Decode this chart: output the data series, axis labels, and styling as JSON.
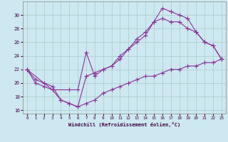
{
  "xlabel": "Windchill (Refroidissement éolien,°C)",
  "bg_color": "#cde8f0",
  "grid_color": "#aacccc",
  "line_color": "#883399",
  "xlim": [
    -0.5,
    23.5
  ],
  "ylim": [
    15.5,
    32
  ],
  "xticks": [
    0,
    1,
    2,
    3,
    4,
    5,
    6,
    7,
    8,
    9,
    10,
    11,
    12,
    13,
    14,
    15,
    16,
    17,
    18,
    19,
    20,
    21,
    22,
    23
  ],
  "yticks": [
    16,
    18,
    20,
    22,
    24,
    26,
    28,
    30
  ],
  "line1_x": [
    0,
    1,
    2,
    3,
    4,
    5,
    6,
    7,
    8,
    9,
    10,
    11,
    12,
    13,
    14,
    15,
    16,
    17,
    18,
    19,
    20,
    21,
    22,
    23
  ],
  "line1_y": [
    22,
    20,
    19.5,
    19,
    17.5,
    17,
    16.5,
    17,
    17.5,
    18.5,
    19,
    19.5,
    20,
    20.5,
    21,
    21,
    21.5,
    22,
    22,
    22.5,
    22.5,
    23,
    23,
    23.5
  ],
  "line2_x": [
    0,
    1,
    2,
    3,
    4,
    5,
    6,
    7,
    8,
    9,
    10,
    11,
    12,
    13,
    14,
    15,
    16,
    17,
    18,
    19,
    20,
    21,
    22,
    23
  ],
  "line2_y": [
    22,
    20.5,
    20,
    19.5,
    17.5,
    17,
    16.5,
    21,
    21.5,
    22,
    22.5,
    23.5,
    25,
    26.5,
    27.5,
    29,
    29.5,
    29,
    29,
    28,
    27.5,
    26,
    25.5,
    23.5
  ],
  "line3_x": [
    0,
    3,
    5,
    6,
    7,
    8,
    9,
    10,
    11,
    12,
    13,
    14,
    15,
    16,
    17,
    18,
    19,
    20,
    21,
    22,
    23
  ],
  "line3_y": [
    22,
    19,
    19,
    19,
    24.5,
    21,
    22,
    22.5,
    24,
    25,
    26,
    27,
    29,
    31,
    30.5,
    30,
    29.5,
    27.5,
    26,
    25.5,
    23.5
  ]
}
